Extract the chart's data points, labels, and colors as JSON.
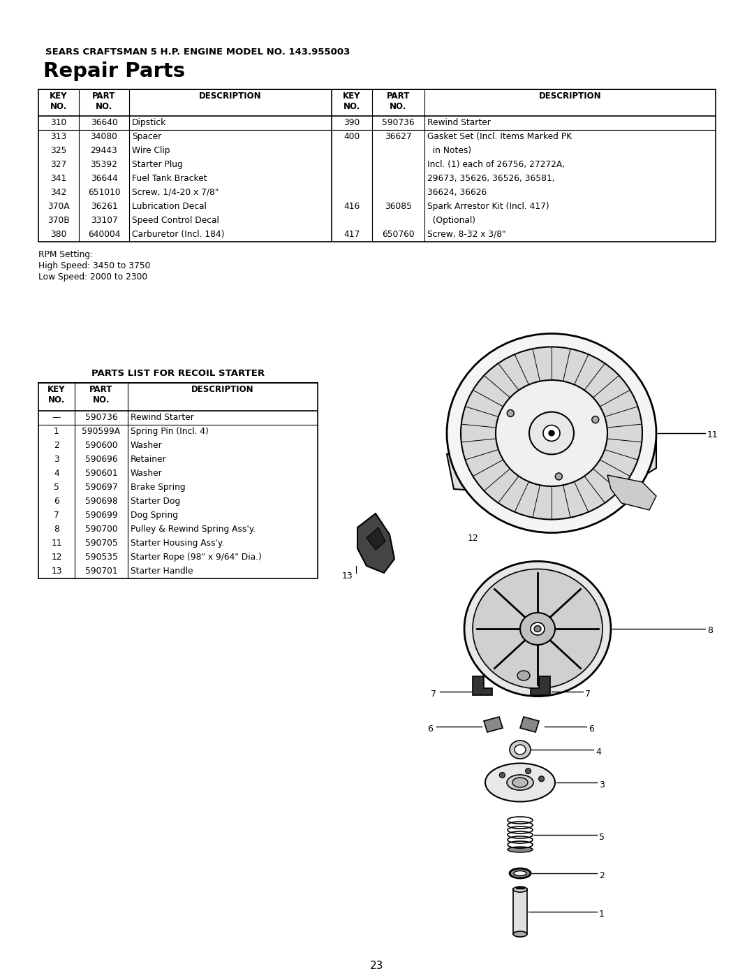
{
  "page_title_small": "SEARS CRAFTSMAN 5 H.P. ENGINE MODEL NO. 143.955003",
  "page_title_large": "Repair Parts",
  "bg_color": "#ffffff",
  "page_number": "23",
  "repair_table_rows": [
    [
      "310",
      "36640",
      "Dipstick",
      "390",
      "590736",
      "Rewind Starter"
    ],
    [
      "313",
      "34080",
      "Spacer",
      "400",
      "36627",
      "Gasket Set (Incl. Items Marked PK"
    ],
    [
      "325",
      "29443",
      "Wire Clip",
      "",
      "",
      "  in Notes)"
    ],
    [
      "327",
      "35392",
      "Starter Plug",
      "",
      "",
      "Incl. (1) each of 26756, 27272A,"
    ],
    [
      "341",
      "36644",
      "Fuel Tank Bracket",
      "",
      "",
      "29673, 35626, 36526, 36581,"
    ],
    [
      "342",
      "651010",
      "Screw, 1/4-20 x 7/8\"",
      "",
      "",
      "36624, 36626"
    ],
    [
      "370A",
      "36261",
      "Lubrication Decal",
      "416",
      "36085",
      "Spark Arrestor Kit (Incl. 417)"
    ],
    [
      "370B",
      "33107",
      "Speed Control Decal",
      "",
      "",
      "  (Optional)"
    ],
    [
      "380",
      "640004",
      "Carburetor (Incl. 184)",
      "417",
      "650760",
      "Screw, 8-32 x 3/8\""
    ]
  ],
  "rpm_lines": [
    "RPM Setting:",
    "High Speed: 3450 to 3750",
    "Low Speed: 2000 to 2300"
  ],
  "recoil_title": "PARTS LIST FOR RECOIL STARTER",
  "recoil_rows": [
    [
      "—",
      "590736",
      "Rewind Starter"
    ],
    [
      "1",
      "590599A",
      "Spring Pin (Incl. 4)"
    ],
    [
      "2",
      "590600",
      "Washer"
    ],
    [
      "3",
      "590696",
      "Retainer"
    ],
    [
      "4",
      "590601",
      "Washer"
    ],
    [
      "5",
      "590697",
      "Brake Spring"
    ],
    [
      "6",
      "590698",
      "Starter Dog"
    ],
    [
      "7",
      "590699",
      "Dog Spring"
    ],
    [
      "8",
      "590700",
      "Pulley & Rewind Spring Ass'y."
    ],
    [
      "11",
      "590705",
      "Starter Housing Ass'y."
    ],
    [
      "12",
      "590535",
      "Starter Rope (98\" x 9/64\" Dia.)"
    ],
    [
      "13",
      "590701",
      "Starter Handle"
    ]
  ]
}
